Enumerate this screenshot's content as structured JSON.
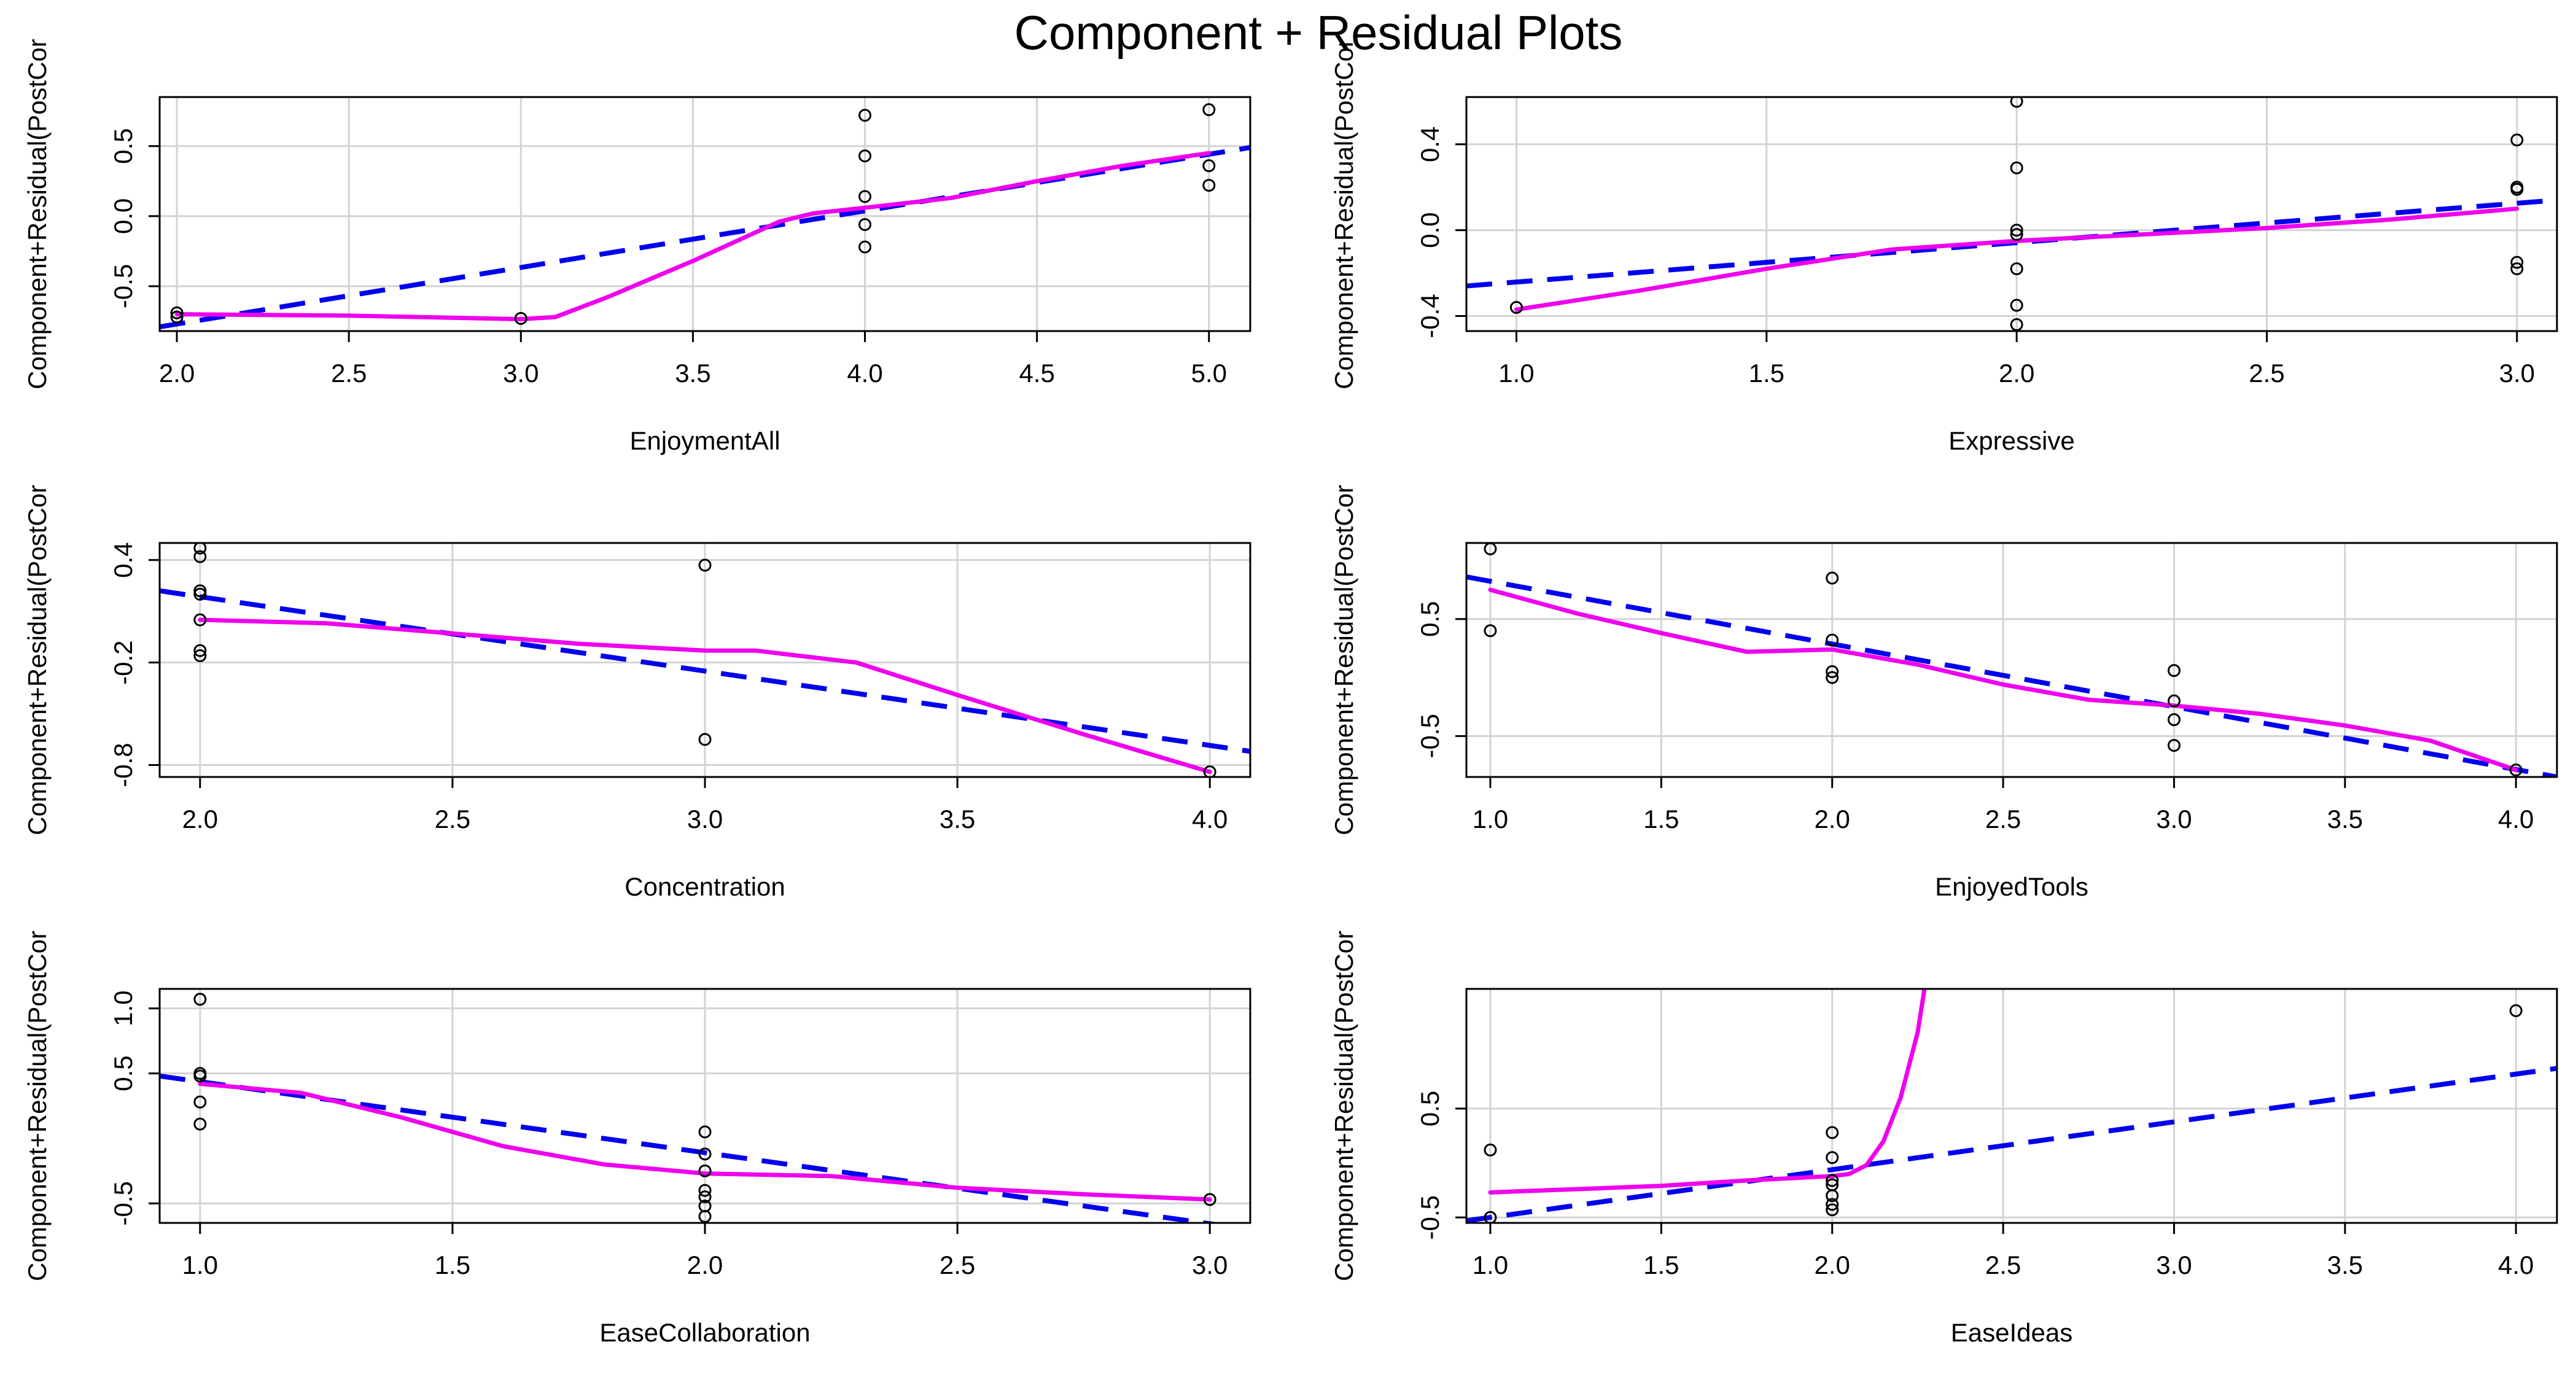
{
  "title": "Component + Residual Plots",
  "colors": {
    "fit": "#0000ee",
    "smooth": "#ee00ee",
    "points": "#000000",
    "grid": "#d3d3d3"
  },
  "chart_data": [
    {
      "type": "scatter",
      "xlabel": "EnjoymentAll",
      "ylabel": "Component+Residual(PostCor",
      "xlim": [
        1.95,
        5.12
      ],
      "ylim": [
        -0.82,
        0.85
      ],
      "xticks": [
        2.0,
        2.5,
        3.0,
        3.5,
        4.0,
        4.5,
        5.0
      ],
      "xtick_labels": [
        "2.0",
        "2.5",
        "3.0",
        "3.5",
        "4.0",
        "4.5",
        "5.0"
      ],
      "yticks": [
        -0.5,
        0.0,
        0.5
      ],
      "ytick_labels": [
        "-0.5",
        "0.0",
        "0.5"
      ],
      "points": [
        [
          2.0,
          -0.69
        ],
        [
          2.0,
          -0.72
        ],
        [
          3.0,
          -0.73
        ],
        [
          4.0,
          0.72
        ],
        [
          4.0,
          0.43
        ],
        [
          4.0,
          0.14
        ],
        [
          4.0,
          -0.06
        ],
        [
          4.0,
          -0.22
        ],
        [
          5.0,
          0.76
        ],
        [
          5.0,
          0.36
        ],
        [
          5.0,
          0.22
        ]
      ],
      "fit": [
        [
          1.95,
          -0.79
        ],
        [
          5.12,
          0.49
        ]
      ],
      "smooth": [
        [
          2.0,
          -0.7
        ],
        [
          2.5,
          -0.71
        ],
        [
          3.0,
          -0.735
        ],
        [
          3.1,
          -0.72
        ],
        [
          3.25,
          -0.58
        ],
        [
          3.5,
          -0.32
        ],
        [
          3.75,
          -0.04
        ],
        [
          3.85,
          0.02
        ],
        [
          4.0,
          0.06
        ],
        [
          4.25,
          0.13
        ],
        [
          4.5,
          0.25
        ],
        [
          4.75,
          0.36
        ],
        [
          5.0,
          0.45
        ]
      ]
    },
    {
      "type": "scatter",
      "xlabel": "Expressive",
      "ylabel": "Component+Residual(PostCor",
      "xlim": [
        0.9,
        3.08
      ],
      "ylim": [
        -0.47,
        0.62
      ],
      "xticks": [
        1.0,
        1.5,
        2.0,
        2.5,
        3.0
      ],
      "xtick_labels": [
        "1.0",
        "1.5",
        "2.0",
        "2.5",
        "3.0"
      ],
      "yticks": [
        -0.4,
        0.0,
        0.4
      ],
      "ytick_labels": [
        "-0.4",
        "0.0",
        "0.4"
      ],
      "points": [
        [
          1.0,
          -0.36
        ],
        [
          2.0,
          0.6
        ],
        [
          2.0,
          0.29
        ],
        [
          2.0,
          0.0
        ],
        [
          2.0,
          -0.02
        ],
        [
          2.0,
          -0.18
        ],
        [
          2.0,
          -0.35
        ],
        [
          2.0,
          -0.44
        ],
        [
          3.0,
          0.42
        ],
        [
          3.0,
          0.2
        ],
        [
          3.0,
          0.19
        ],
        [
          3.0,
          -0.15
        ],
        [
          3.0,
          -0.18
        ]
      ],
      "fit": [
        [
          0.9,
          -0.26
        ],
        [
          3.08,
          0.14
        ]
      ],
      "smooth": [
        [
          1.0,
          -0.37
        ],
        [
          1.25,
          -0.28
        ],
        [
          1.5,
          -0.18
        ],
        [
          1.75,
          -0.09
        ],
        [
          2.0,
          -0.05
        ],
        [
          2.25,
          -0.02
        ],
        [
          2.5,
          0.01
        ],
        [
          2.75,
          0.05
        ],
        [
          3.0,
          0.1
        ]
      ]
    },
    {
      "type": "scatter",
      "xlabel": "Concentration",
      "ylabel": "Component+Residual(PostCor",
      "xlim": [
        1.92,
        4.08
      ],
      "ylim": [
        -0.87,
        0.5
      ],
      "xticks": [
        2.0,
        2.5,
        3.0,
        3.5,
        4.0
      ],
      "xtick_labels": [
        "2.0",
        "2.5",
        "3.0",
        "3.5",
        "4.0"
      ],
      "yticks": [
        -0.8,
        -0.2,
        0.4
      ],
      "ytick_labels": [
        "-0.8",
        "-0.2",
        "0.4"
      ],
      "points": [
        [
          2.0,
          0.47
        ],
        [
          2.0,
          0.42
        ],
        [
          2.0,
          0.22
        ],
        [
          2.0,
          0.2
        ],
        [
          2.0,
          0.05
        ],
        [
          2.0,
          -0.13
        ],
        [
          2.0,
          -0.16
        ],
        [
          3.0,
          0.37
        ],
        [
          3.0,
          -0.65
        ],
        [
          4.0,
          -0.84
        ]
      ],
      "fit": [
        [
          1.92,
          0.22
        ],
        [
          4.08,
          -0.72
        ]
      ],
      "smooth": [
        [
          2.0,
          0.05
        ],
        [
          2.25,
          0.03
        ],
        [
          2.5,
          -0.03
        ],
        [
          2.75,
          -0.09
        ],
        [
          3.0,
          -0.13
        ],
        [
          3.1,
          -0.13
        ],
        [
          3.3,
          -0.2
        ],
        [
          3.5,
          -0.39
        ],
        [
          3.75,
          -0.62
        ],
        [
          4.0,
          -0.84
        ]
      ]
    },
    {
      "type": "scatter",
      "xlabel": "EnjoyedTools",
      "ylabel": "Component+Residual(PostCor",
      "xlim": [
        0.93,
        4.12
      ],
      "ylim": [
        -0.85,
        1.15
      ],
      "xticks": [
        1.0,
        1.5,
        2.0,
        2.5,
        3.0,
        3.5,
        4.0
      ],
      "xtick_labels": [
        "1.0",
        "1.5",
        "2.0",
        "2.5",
        "3.0",
        "3.5",
        "4.0"
      ],
      "yticks": [
        -0.5,
        0.5
      ],
      "ytick_labels": [
        "-0.5",
        "0.5"
      ],
      "points": [
        [
          1.0,
          1.1
        ],
        [
          1.0,
          0.4
        ],
        [
          2.0,
          0.85
        ],
        [
          2.0,
          0.32
        ],
        [
          2.0,
          0.05
        ],
        [
          2.0,
          0.0
        ],
        [
          3.0,
          0.06
        ],
        [
          3.0,
          -0.2
        ],
        [
          3.0,
          -0.36
        ],
        [
          3.0,
          -0.58
        ],
        [
          4.0,
          -0.79
        ]
      ],
      "fit": [
        [
          0.93,
          0.86
        ],
        [
          4.12,
          -0.85
        ]
      ],
      "smooth": [
        [
          1.0,
          0.75
        ],
        [
          1.25,
          0.55
        ],
        [
          1.5,
          0.38
        ],
        [
          1.75,
          0.22
        ],
        [
          2.0,
          0.24
        ],
        [
          2.25,
          0.11
        ],
        [
          2.5,
          -0.06
        ],
        [
          2.75,
          -0.19
        ],
        [
          3.0,
          -0.24
        ],
        [
          3.25,
          -0.31
        ],
        [
          3.5,
          -0.41
        ],
        [
          3.75,
          -0.54
        ],
        [
          4.0,
          -0.79
        ]
      ]
    },
    {
      "type": "scatter",
      "xlabel": "EaseCollaboration",
      "ylabel": "Component+Residual(PostCor",
      "xlim": [
        0.92,
        3.08
      ],
      "ylim": [
        -0.65,
        1.15
      ],
      "xticks": [
        1.0,
        1.5,
        2.0,
        2.5,
        3.0
      ],
      "xtick_labels": [
        "1.0",
        "1.5",
        "2.0",
        "2.5",
        "3.0"
      ],
      "yticks": [
        -0.5,
        0.5,
        1.0
      ],
      "ytick_labels": [
        "-0.5",
        "0.5",
        "1.0"
      ],
      "points": [
        [
          1.0,
          1.07
        ],
        [
          1.0,
          0.5
        ],
        [
          1.0,
          0.48
        ],
        [
          1.0,
          0.28
        ],
        [
          1.0,
          0.11
        ],
        [
          2.0,
          0.05
        ],
        [
          2.0,
          -0.12
        ],
        [
          2.0,
          -0.25
        ],
        [
          2.0,
          -0.4
        ],
        [
          2.0,
          -0.45
        ],
        [
          2.0,
          -0.52
        ],
        [
          2.0,
          -0.6
        ],
        [
          3.0,
          -0.47
        ]
      ],
      "fit": [
        [
          0.92,
          0.48
        ],
        [
          3.08,
          -0.7
        ]
      ],
      "smooth": [
        [
          1.0,
          0.42
        ],
        [
          1.2,
          0.35
        ],
        [
          1.4,
          0.16
        ],
        [
          1.6,
          -0.06
        ],
        [
          1.8,
          -0.2
        ],
        [
          2.0,
          -0.27
        ],
        [
          2.25,
          -0.29
        ],
        [
          2.5,
          -0.38
        ],
        [
          2.75,
          -0.43
        ],
        [
          3.0,
          -0.47
        ]
      ]
    },
    {
      "type": "scatter",
      "xlabel": "EaseIdeas",
      "ylabel": "Component+Residual(PostCor",
      "xlim": [
        0.93,
        4.12
      ],
      "ylim": [
        -0.55,
        1.6
      ],
      "xticks": [
        1.0,
        1.5,
        2.0,
        2.5,
        3.0,
        3.5,
        4.0
      ],
      "xtick_labels": [
        "1.0",
        "1.5",
        "2.0",
        "2.5",
        "3.0",
        "3.5",
        "4.0"
      ],
      "yticks": [
        -0.5,
        0.5
      ],
      "ytick_labels": [
        "-0.5",
        "0.5"
      ],
      "points": [
        [
          1.0,
          0.12
        ],
        [
          1.0,
          -0.5
        ],
        [
          2.0,
          0.28
        ],
        [
          2.0,
          0.05
        ],
        [
          2.0,
          -0.16
        ],
        [
          2.0,
          -0.2
        ],
        [
          2.0,
          -0.3
        ],
        [
          2.0,
          -0.38
        ],
        [
          2.0,
          -0.43
        ],
        [
          4.0,
          1.4
        ]
      ],
      "fit": [
        [
          0.93,
          -0.53
        ],
        [
          4.12,
          0.87
        ]
      ],
      "smooth": [
        [
          1.0,
          -0.27
        ],
        [
          1.25,
          -0.24
        ],
        [
          1.5,
          -0.21
        ],
        [
          1.75,
          -0.16
        ],
        [
          2.0,
          -0.12
        ],
        [
          2.05,
          -0.1
        ],
        [
          2.1,
          -0.02
        ],
        [
          2.15,
          0.2
        ],
        [
          2.2,
          0.6
        ],
        [
          2.25,
          1.2
        ],
        [
          2.27,
          1.6
        ]
      ]
    }
  ]
}
